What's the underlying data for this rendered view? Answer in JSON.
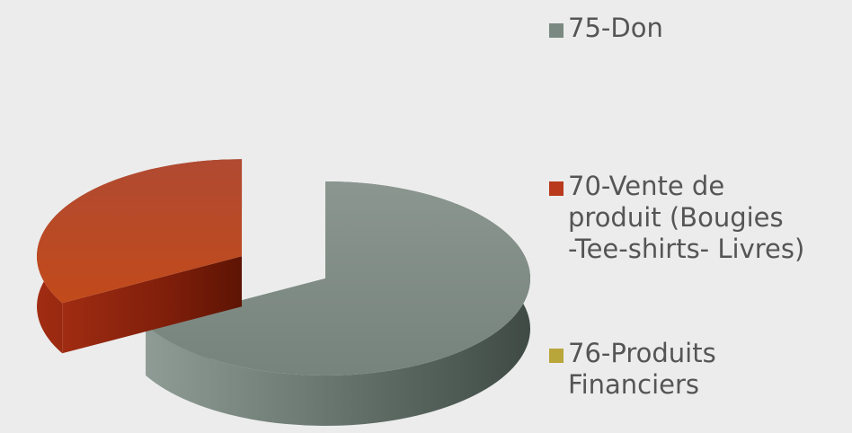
{
  "chart_data": {
    "type": "pie",
    "style": "3d-exploded",
    "title": "",
    "categories": [
      "75-Don",
      "70-Vente de\nproduit (Bougies\n-Tee-shirts- Livres)",
      "76-Produits\nFinanciers"
    ],
    "values": [
      67,
      33,
      0
    ],
    "colors": [
      "#7a8a82",
      "#b8391c",
      "#b8a63a"
    ],
    "legend_position": "right"
  }
}
